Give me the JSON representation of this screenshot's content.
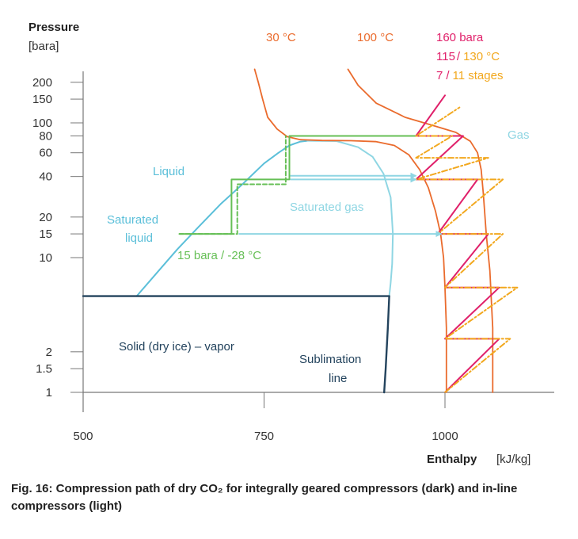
{
  "chart_data": {
    "type": "line",
    "title": "",
    "xlabel": "Enthalpy",
    "xunit": "[kJ/kg]",
    "ylabel": "Pressure",
    "yunit": "[bara]",
    "xlim": [
      500,
      1150
    ],
    "ylim": [
      0.9,
      260
    ],
    "yscale": "log",
    "x_ticks": [
      500,
      750,
      1000
    ],
    "x_tick_labels": [
      "500",
      "750",
      "1000"
    ],
    "y_ticks": [
      1,
      1.5,
      2,
      10,
      15,
      20,
      40,
      60,
      80,
      100,
      150,
      200
    ],
    "y_tick_labels": [
      "1",
      "1.5",
      "2",
      "10",
      "15",
      "20",
      "40",
      "60",
      "80",
      "100",
      "150",
      "200"
    ],
    "colors": {
      "dark_line": "#23435d",
      "sat_liquid": "#5bbfd9",
      "sat_gas": "#8fd6e3",
      "isotherm": "#ea6b2d",
      "dark_path": "#e0206a",
      "light_path": "#f2a81e",
      "green_path": "#66bf56",
      "axis": "#777777"
    },
    "annotations": {
      "isotherm_30": "30 °C",
      "isotherm_100": "100 °C",
      "legend_160": "160 bara",
      "legend_115": "115",
      "legend_130": "130 °C",
      "legend_7": "7",
      "legend_11": "11 stages",
      "slash": "/",
      "gas": "Gas",
      "liquid": "Liquid",
      "saturated_liquid_1": "Saturated",
      "saturated_liquid_2": "liquid",
      "saturated_gas": "Saturated gas",
      "inlet_condition": "15 bara / -28 °C",
      "solid_vapor": "Solid (dry ice) – vapor",
      "sublimation_1": "Sublimation",
      "sublimation_2": "line"
    },
    "series": [
      {
        "name": "Saturated liquid",
        "style": "sat_liquid",
        "dash": "",
        "points": [
          [
            574,
            5.18
          ],
          [
            600,
            7.5
          ],
          [
            630,
            11.5
          ],
          [
            660,
            17
          ],
          [
            690,
            25
          ],
          [
            720,
            35
          ],
          [
            750,
            50
          ],
          [
            770,
            60
          ],
          [
            785,
            68
          ],
          [
            800,
            72.5
          ],
          [
            810,
            73.6
          ]
        ]
      },
      {
        "name": "Saturated gas",
        "style": "sat_gas",
        "dash": "",
        "points": [
          [
            810,
            73.6
          ],
          [
            850,
            73.2
          ],
          [
            880,
            66
          ],
          [
            900,
            56
          ],
          [
            915,
            42
          ],
          [
            925,
            28
          ],
          [
            928,
            15
          ],
          [
            927,
            9
          ],
          [
            925,
            6.5
          ],
          [
            923,
            5.18
          ]
        ]
      },
      {
        "name": "Triple line",
        "style": "dark_line",
        "dash": "",
        "points": [
          [
            500,
            5.18
          ],
          [
            923,
            5.18
          ]
        ]
      },
      {
        "name": "Sublimation line",
        "style": "dark_line",
        "dash": "",
        "points": [
          [
            923,
            5.18
          ],
          [
            921,
            3
          ],
          [
            918,
            1.5
          ],
          [
            916,
            1
          ]
        ]
      },
      {
        "name": "Isotherm 30 °C",
        "style": "isotherm",
        "dash": "",
        "points": [
          [
            737,
            250
          ],
          [
            742,
            200
          ],
          [
            748,
            150
          ],
          [
            755,
            110
          ],
          [
            768,
            90
          ],
          [
            782,
            79
          ],
          [
            800,
            75
          ],
          [
            830,
            74
          ],
          [
            870,
            73.7
          ],
          [
            905,
            72.5
          ],
          [
            930,
            68
          ],
          [
            950,
            58
          ],
          [
            965,
            45
          ],
          [
            977,
            33
          ],
          [
            987,
            22
          ],
          [
            994,
            15
          ],
          [
            998,
            10
          ],
          [
            1000,
            6
          ],
          [
            1002,
            3
          ],
          [
            1002,
            1
          ]
        ]
      },
      {
        "name": "Isotherm 100 °C",
        "style": "isotherm",
        "dash": "",
        "points": [
          [
            866,
            250
          ],
          [
            880,
            190
          ],
          [
            905,
            140
          ],
          [
            945,
            110
          ],
          [
            985,
            95
          ],
          [
            1015,
            85
          ],
          [
            1035,
            73
          ],
          [
            1045,
            60
          ],
          [
            1050,
            45
          ],
          [
            1053,
            30
          ],
          [
            1057,
            15
          ],
          [
            1062,
            8
          ],
          [
            1066,
            3
          ],
          [
            1066,
            1
          ]
        ]
      },
      {
        "name": "Inlet path (light)",
        "style": "green_path",
        "dash": "5 3",
        "points": [
          [
            633,
            15
          ],
          [
            713,
            15
          ],
          [
            713,
            35
          ],
          [
            780,
            35
          ],
          [
            780,
            80
          ]
        ]
      },
      {
        "name": "Inlet path (dark)",
        "style": "green_path",
        "dash": "",
        "points": [
          [
            633,
            15
          ],
          [
            705,
            15
          ],
          [
            705,
            38
          ],
          [
            785,
            38
          ],
          [
            785,
            80
          ],
          [
            960,
            80
          ]
        ]
      },
      {
        "name": "Compression path 7 stages (dark)",
        "style": "dark_path",
        "dash": "",
        "points": [
          [
            1000,
            1
          ],
          [
            1075,
            2.5
          ],
          [
            1000,
            2.5
          ],
          [
            1075,
            6
          ],
          [
            1000,
            6
          ],
          [
            1060,
            15
          ],
          [
            990,
            15
          ],
          [
            1045,
            38
          ],
          [
            960,
            38
          ],
          [
            1025,
            80
          ],
          [
            960,
            80
          ],
          [
            1000,
            160
          ]
        ]
      },
      {
        "name": "Compression path 11 stages (light)",
        "style": "light_path",
        "dash": "7 3 2 3",
        "points": [
          [
            1000,
            1
          ],
          [
            1090,
            2.5
          ],
          [
            1000,
            2.5
          ],
          [
            1100,
            6
          ],
          [
            1000,
            6
          ],
          [
            1080,
            15
          ],
          [
            990,
            15
          ],
          [
            1080,
            38
          ],
          [
            960,
            38
          ],
          [
            1060,
            55
          ],
          [
            960,
            55
          ],
          [
            1010,
            80
          ],
          [
            960,
            80
          ],
          [
            1020,
            130
          ]
        ]
      }
    ],
    "arrows": [
      {
        "name": "arrow-15",
        "style": "sat_gas",
        "points": [
          [
            715,
            15
          ],
          [
            995,
            15
          ]
        ]
      },
      {
        "name": "arrow-38a",
        "style": "sat_gas",
        "points": [
          [
            786,
            38
          ],
          [
            960,
            38
          ]
        ]
      },
      {
        "name": "arrow-38b",
        "style": "sat_gas",
        "points": [
          [
            786,
            40.5
          ],
          [
            960,
            40.5
          ]
        ]
      }
    ],
    "caption": "Fig. 16: Compression path of dry CO₂ for integrally geared compressors (dark) and in-line compressors (light)"
  }
}
